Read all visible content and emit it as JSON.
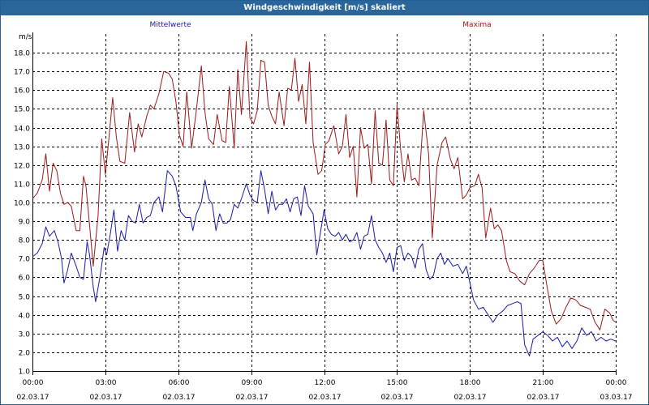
{
  "window": {
    "title": "Windgeschwindigkeit [m/s] skaliert"
  },
  "colors": {
    "mean": "#1a1aa8",
    "max": "#a01818",
    "title_bg": "#2a6699",
    "grid": "#000000"
  },
  "chart_data": {
    "type": "line",
    "title": "Windgeschwindigkeit [m/s] skaliert",
    "ylabel": "m/s",
    "ylim": [
      1.0,
      19.0
    ],
    "y_ticks": [
      "1.0",
      "2.0",
      "3.0",
      "4.0",
      "5.0",
      "6.0",
      "7.0",
      "8.0",
      "9.0",
      "10.0",
      "11.0",
      "12.0",
      "13.0",
      "14.0",
      "15.0",
      "16.0",
      "17.0",
      "18.0"
    ],
    "xlim_hours": [
      0,
      24
    ],
    "x_ticks": [
      {
        "time": "00:00",
        "date": "02.03.17"
      },
      {
        "time": "03:00",
        "date": "02.03.17"
      },
      {
        "time": "06:00",
        "date": "02.03.17"
      },
      {
        "time": "09:00",
        "date": "02.03.17"
      },
      {
        "time": "12:00",
        "date": "02.03.17"
      },
      {
        "time": "15:00",
        "date": "02.03.17"
      },
      {
        "time": "18:00",
        "date": "02.03.17"
      },
      {
        "time": "21:00",
        "date": "02.03.17"
      },
      {
        "time": "00:00",
        "date": "03.03.17"
      }
    ],
    "grid": true,
    "legend_position": "top",
    "series": [
      {
        "name": "Mittelwerte",
        "color": "#1a1aa8",
        "points": [
          [
            0.0,
            7.1
          ],
          [
            0.2,
            7.3
          ],
          [
            0.4,
            7.8
          ],
          [
            0.55,
            8.7
          ],
          [
            0.7,
            8.2
          ],
          [
            0.9,
            8.5
          ],
          [
            1.05,
            7.9
          ],
          [
            1.2,
            7.0
          ],
          [
            1.3,
            5.7
          ],
          [
            1.45,
            6.4
          ],
          [
            1.6,
            7.3
          ],
          [
            1.8,
            6.6
          ],
          [
            1.95,
            6.0
          ],
          [
            2.1,
            5.9
          ],
          [
            2.25,
            7.9
          ],
          [
            2.35,
            7.2
          ],
          [
            2.5,
            5.5
          ],
          [
            2.6,
            4.7
          ],
          [
            2.8,
            6.2
          ],
          [
            2.95,
            7.6
          ],
          [
            3.05,
            7.2
          ],
          [
            3.2,
            8.3
          ],
          [
            3.35,
            9.6
          ],
          [
            3.5,
            7.4
          ],
          [
            3.65,
            8.5
          ],
          [
            3.8,
            8.0
          ],
          [
            3.95,
            9.3
          ],
          [
            4.1,
            9.0
          ],
          [
            4.25,
            8.9
          ],
          [
            4.4,
            9.9
          ],
          [
            4.55,
            8.9
          ],
          [
            4.7,
            9.2
          ],
          [
            4.85,
            9.3
          ],
          [
            5.0,
            10.0
          ],
          [
            5.2,
            10.3
          ],
          [
            5.35,
            9.5
          ],
          [
            5.55,
            11.7
          ],
          [
            5.75,
            11.4
          ],
          [
            5.9,
            10.9
          ],
          [
            6.1,
            9.5
          ],
          [
            6.3,
            9.2
          ],
          [
            6.5,
            9.2
          ],
          [
            6.6,
            8.5
          ],
          [
            6.75,
            9.4
          ],
          [
            6.95,
            10.0
          ],
          [
            7.1,
            11.2
          ],
          [
            7.25,
            10.2
          ],
          [
            7.4,
            9.9
          ],
          [
            7.55,
            8.5
          ],
          [
            7.7,
            9.4
          ],
          [
            7.85,
            8.9
          ],
          [
            8.0,
            8.9
          ],
          [
            8.15,
            9.1
          ],
          [
            8.3,
            9.9
          ],
          [
            8.45,
            9.7
          ],
          [
            8.6,
            10.2
          ],
          [
            8.8,
            11.0
          ],
          [
            8.95,
            10.4
          ],
          [
            9.1,
            10.1
          ],
          [
            9.25,
            10.0
          ],
          [
            9.4,
            11.7
          ],
          [
            9.55,
            10.7
          ],
          [
            9.7,
            9.4
          ],
          [
            9.85,
            10.6
          ],
          [
            10.0,
            9.6
          ],
          [
            10.15,
            9.9
          ],
          [
            10.3,
            9.9
          ],
          [
            10.45,
            10.2
          ],
          [
            10.6,
            9.5
          ],
          [
            10.75,
            10.2
          ],
          [
            10.9,
            10.3
          ],
          [
            11.05,
            9.3
          ],
          [
            11.2,
            10.9
          ],
          [
            11.35,
            9.8
          ],
          [
            11.55,
            9.4
          ],
          [
            11.7,
            7.2
          ],
          [
            11.85,
            8.4
          ],
          [
            12.0,
            9.6
          ],
          [
            12.15,
            8.6
          ],
          [
            12.3,
            8.3
          ],
          [
            12.45,
            8.2
          ],
          [
            12.6,
            8.4
          ],
          [
            12.75,
            8.0
          ],
          [
            12.9,
            8.3
          ],
          [
            13.05,
            7.9
          ],
          [
            13.2,
            8.0
          ],
          [
            13.35,
            8.4
          ],
          [
            13.5,
            7.5
          ],
          [
            13.65,
            8.2
          ],
          [
            13.8,
            8.3
          ],
          [
            13.95,
            9.3
          ],
          [
            14.1,
            8.0
          ],
          [
            14.25,
            7.6
          ],
          [
            14.4,
            7.3
          ],
          [
            14.55,
            6.8
          ],
          [
            14.7,
            7.3
          ],
          [
            14.85,
            6.3
          ],
          [
            15.0,
            7.6
          ],
          [
            15.15,
            7.7
          ],
          [
            15.3,
            6.9
          ],
          [
            15.45,
            7.3
          ],
          [
            15.6,
            7.1
          ],
          [
            15.75,
            6.5
          ],
          [
            15.9,
            7.5
          ],
          [
            16.05,
            7.8
          ],
          [
            16.2,
            6.4
          ],
          [
            16.35,
            5.9
          ],
          [
            16.5,
            6.1
          ],
          [
            16.65,
            7.0
          ],
          [
            16.8,
            7.3
          ],
          [
            16.95,
            6.7
          ],
          [
            17.1,
            7.0
          ],
          [
            17.3,
            6.6
          ],
          [
            17.5,
            6.7
          ],
          [
            17.7,
            6.2
          ],
          [
            17.85,
            6.6
          ],
          [
            18.0,
            5.7
          ],
          [
            18.15,
            4.8
          ],
          [
            18.35,
            4.3
          ],
          [
            18.55,
            4.4
          ],
          [
            18.75,
            4.0
          ],
          [
            18.95,
            3.6
          ],
          [
            19.15,
            4.0
          ],
          [
            19.35,
            4.2
          ],
          [
            19.55,
            4.5
          ],
          [
            19.75,
            4.6
          ],
          [
            19.95,
            4.7
          ],
          [
            20.1,
            4.6
          ],
          [
            20.25,
            2.4
          ],
          [
            20.45,
            1.8
          ],
          [
            20.6,
            2.7
          ],
          [
            20.8,
            2.9
          ],
          [
            21.0,
            3.1
          ],
          [
            21.2,
            2.9
          ],
          [
            21.4,
            2.6
          ],
          [
            21.6,
            2.8
          ],
          [
            21.8,
            2.3
          ],
          [
            22.0,
            2.6
          ],
          [
            22.2,
            2.2
          ],
          [
            22.4,
            2.6
          ],
          [
            22.6,
            3.3
          ],
          [
            22.8,
            2.9
          ],
          [
            23.0,
            3.1
          ],
          [
            23.2,
            2.6
          ],
          [
            23.4,
            2.8
          ],
          [
            23.6,
            2.6
          ],
          [
            23.8,
            2.7
          ],
          [
            24.0,
            2.6
          ]
        ]
      },
      {
        "name": "Maxima",
        "color": "#a01818",
        "points": [
          [
            0.0,
            10.2
          ],
          [
            0.2,
            10.5
          ],
          [
            0.4,
            11.2
          ],
          [
            0.55,
            12.6
          ],
          [
            0.7,
            10.6
          ],
          [
            0.85,
            12.1
          ],
          [
            1.0,
            11.7
          ],
          [
            1.15,
            10.5
          ],
          [
            1.3,
            9.9
          ],
          [
            1.45,
            10.0
          ],
          [
            1.6,
            9.8
          ],
          [
            1.8,
            8.5
          ],
          [
            1.95,
            8.5
          ],
          [
            2.1,
            11.4
          ],
          [
            2.2,
            10.9
          ],
          [
            2.35,
            8.8
          ],
          [
            2.5,
            6.6
          ],
          [
            2.7,
            9.3
          ],
          [
            2.85,
            13.4
          ],
          [
            3.0,
            11.5
          ],
          [
            3.15,
            13.5
          ],
          [
            3.3,
            15.6
          ],
          [
            3.45,
            13.5
          ],
          [
            3.6,
            12.2
          ],
          [
            3.8,
            12.1
          ],
          [
            4.0,
            14.8
          ],
          [
            4.2,
            12.7
          ],
          [
            4.35,
            14.2
          ],
          [
            4.5,
            13.5
          ],
          [
            4.7,
            14.6
          ],
          [
            4.85,
            15.2
          ],
          [
            5.0,
            15.0
          ],
          [
            5.2,
            15.8
          ],
          [
            5.4,
            17.0
          ],
          [
            5.6,
            16.9
          ],
          [
            5.75,
            16.6
          ],
          [
            5.9,
            15.4
          ],
          [
            6.05,
            13.6
          ],
          [
            6.2,
            13.0
          ],
          [
            6.35,
            15.9
          ],
          [
            6.55,
            12.9
          ],
          [
            6.75,
            15.0
          ],
          [
            6.95,
            17.3
          ],
          [
            7.1,
            14.8
          ],
          [
            7.25,
            13.4
          ],
          [
            7.45,
            13.1
          ],
          [
            7.6,
            14.7
          ],
          [
            7.8,
            13.3
          ],
          [
            7.95,
            13.2
          ],
          [
            8.1,
            16.2
          ],
          [
            8.3,
            12.9
          ],
          [
            8.45,
            17.1
          ],
          [
            8.6,
            14.7
          ],
          [
            8.8,
            18.6
          ],
          [
            8.95,
            14.5
          ],
          [
            9.1,
            14.2
          ],
          [
            9.25,
            14.9
          ],
          [
            9.4,
            17.6
          ],
          [
            9.55,
            17.5
          ],
          [
            9.7,
            15.2
          ],
          [
            9.85,
            14.6
          ],
          [
            10.0,
            14.2
          ],
          [
            10.15,
            15.9
          ],
          [
            10.35,
            14.1
          ],
          [
            10.5,
            16.1
          ],
          [
            10.65,
            16.0
          ],
          [
            10.8,
            17.7
          ],
          [
            10.95,
            15.4
          ],
          [
            11.1,
            16.3
          ],
          [
            11.25,
            14.2
          ],
          [
            11.4,
            17.5
          ],
          [
            11.55,
            13.2
          ],
          [
            11.75,
            11.5
          ],
          [
            11.9,
            11.7
          ],
          [
            12.05,
            13.1
          ],
          [
            12.2,
            13.3
          ],
          [
            12.4,
            14.1
          ],
          [
            12.6,
            12.6
          ],
          [
            12.75,
            13.0
          ],
          [
            12.9,
            14.7
          ],
          [
            13.05,
            12.4
          ],
          [
            13.2,
            13.0
          ],
          [
            13.35,
            10.3
          ],
          [
            13.5,
            14.0
          ],
          [
            13.65,
            12.9
          ],
          [
            13.8,
            13.1
          ],
          [
            13.95,
            11.0
          ],
          [
            14.1,
            14.9
          ],
          [
            14.25,
            12.1
          ],
          [
            14.4,
            12.0
          ],
          [
            14.55,
            14.4
          ],
          [
            14.7,
            11.2
          ],
          [
            14.85,
            10.9
          ],
          [
            15.0,
            15.2
          ],
          [
            15.15,
            12.8
          ],
          [
            15.3,
            11.1
          ],
          [
            15.45,
            12.6
          ],
          [
            15.6,
            11.2
          ],
          [
            15.75,
            11.3
          ],
          [
            15.9,
            10.9
          ],
          [
            16.1,
            14.9
          ],
          [
            16.3,
            12.6
          ],
          [
            16.45,
            8.1
          ],
          [
            16.65,
            12.0
          ],
          [
            16.85,
            13.2
          ],
          [
            17.0,
            13.5
          ],
          [
            17.2,
            12.3
          ],
          [
            17.35,
            11.8
          ],
          [
            17.5,
            12.4
          ],
          [
            17.7,
            10.2
          ],
          [
            17.85,
            10.4
          ],
          [
            18.0,
            10.8
          ],
          [
            18.2,
            10.9
          ],
          [
            18.35,
            11.5
          ],
          [
            18.5,
            10.8
          ],
          [
            18.65,
            8.1
          ],
          [
            18.85,
            9.7
          ],
          [
            19.0,
            8.6
          ],
          [
            19.15,
            8.8
          ],
          [
            19.3,
            8.5
          ],
          [
            19.5,
            6.9
          ],
          [
            19.65,
            6.3
          ],
          [
            19.85,
            6.2
          ],
          [
            20.05,
            5.8
          ],
          [
            20.25,
            5.6
          ],
          [
            20.45,
            6.2
          ],
          [
            20.65,
            6.5
          ],
          [
            20.85,
            6.9
          ],
          [
            21.0,
            6.9
          ],
          [
            21.15,
            5.7
          ],
          [
            21.35,
            4.2
          ],
          [
            21.55,
            3.5
          ],
          [
            21.75,
            3.8
          ],
          [
            21.95,
            4.4
          ],
          [
            22.15,
            4.9
          ],
          [
            22.35,
            4.8
          ],
          [
            22.55,
            4.5
          ],
          [
            22.75,
            4.4
          ],
          [
            22.95,
            4.3
          ],
          [
            23.15,
            3.6
          ],
          [
            23.35,
            3.2
          ],
          [
            23.55,
            4.3
          ],
          [
            23.75,
            4.1
          ],
          [
            23.9,
            3.7
          ],
          [
            24.0,
            3.6
          ]
        ]
      }
    ]
  }
}
